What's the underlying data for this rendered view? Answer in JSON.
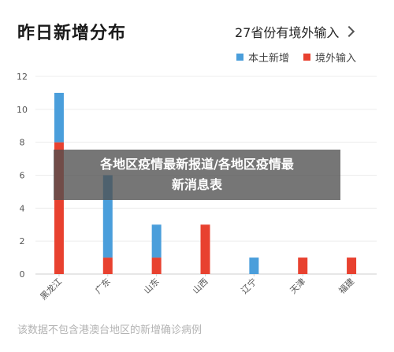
{
  "header": {
    "title": "昨日新增分布",
    "link_label": "27省份有境外输入"
  },
  "chart_data": {
    "type": "bar",
    "stacked": true,
    "categories": [
      "黑龙江",
      "广东",
      "山东",
      "山西",
      "辽宁",
      "天津",
      "福建"
    ],
    "series": [
      {
        "name": "本土新增",
        "color": "#4a9edb",
        "values": [
          3,
          5,
          2,
          0,
          1,
          0,
          0
        ]
      },
      {
        "name": "境外输入",
        "color": "#e8412f",
        "values": [
          8,
          1,
          1,
          3,
          0,
          1,
          1
        ]
      }
    ],
    "ylim": [
      0,
      12
    ],
    "yticks": [
      "0",
      "2",
      "4",
      "6",
      "8",
      "10",
      "12"
    ],
    "grid": true,
    "legend_position": "top-right",
    "title": "",
    "xlabel": "",
    "ylabel": ""
  },
  "footnote": "该数据不包含港澳台地区的新增确诊病例",
  "overlay": {
    "line1": "各地区疫情最新报道/各地区疫情最",
    "line2": "新消息表"
  }
}
